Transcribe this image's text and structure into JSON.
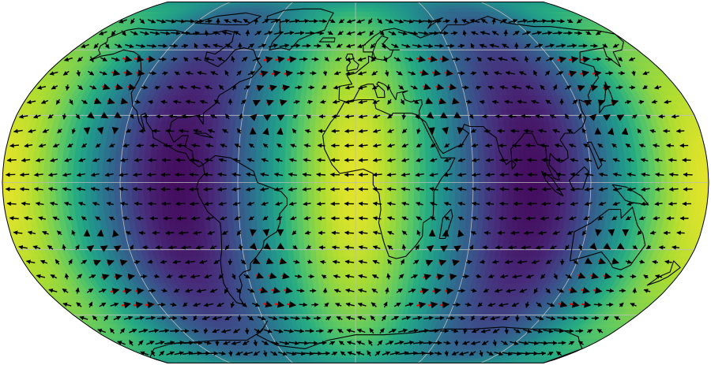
{
  "map": {
    "projection": "robinson",
    "central_longitude": 0,
    "graticule": {
      "lon_step": 60,
      "lat_step": 30,
      "color": "#bdbdbd"
    },
    "field": {
      "colormap": "viridis",
      "low_color": "#440154",
      "high_color": "#fde725",
      "vector_color": "#000000",
      "highlight_color": "#ff0000",
      "lows_at_longitudes": [
        -90,
        90
      ],
      "highs_at_longitudes": [
        0,
        180
      ]
    },
    "coastline_color": "#000000"
  }
}
